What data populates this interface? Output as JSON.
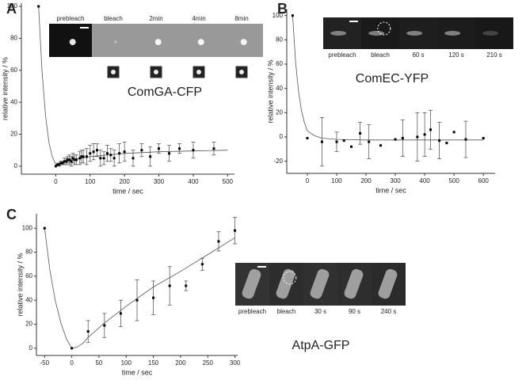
{
  "chart_data": [
    {
      "type": "scatter",
      "panel": "A",
      "annotation": "ComGA-CFP",
      "xlabel": "time / sec",
      "ylabel": "relative intensity / %",
      "insets": [
        "prebleach",
        "bleach",
        "2min",
        "4min",
        "8min"
      ],
      "xlim": [
        -100,
        520
      ],
      "ylim": [
        -5,
        102
      ],
      "xticks": [
        0,
        100,
        200,
        300,
        400,
        500
      ],
      "yticks": [
        0,
        20,
        40,
        60,
        80,
        100
      ],
      "x": [
        -50,
        0,
        5,
        10,
        15,
        20,
        25,
        30,
        35,
        40,
        45,
        50,
        55,
        60,
        70,
        75,
        80,
        90,
        100,
        110,
        120,
        130,
        140,
        150,
        160,
        170,
        185,
        200,
        225,
        250,
        275,
        300,
        330,
        360,
        400,
        460
      ],
      "values": [
        100,
        0,
        1,
        1,
        2,
        2,
        3,
        3,
        4,
        4,
        3,
        5,
        4,
        4,
        5,
        6,
        6,
        6,
        8,
        9,
        10,
        5,
        5,
        8,
        7,
        5,
        8,
        9,
        5,
        10,
        6,
        11,
        8,
        11,
        10,
        11
      ],
      "errors": [
        null,
        null,
        null,
        1,
        1,
        1,
        2,
        2,
        2,
        3,
        3,
        3,
        3,
        3,
        4,
        4,
        4,
        5,
        5,
        5,
        4,
        5,
        4,
        5,
        4,
        5,
        6,
        6,
        5,
        4,
        6,
        3,
        5,
        3,
        5,
        4
      ],
      "fit_x": [
        -50,
        -40,
        -30,
        -20,
        -10,
        0,
        20,
        50,
        100,
        200,
        300,
        400,
        500
      ],
      "fit_values": [
        100,
        60,
        32,
        15,
        6,
        1,
        2,
        4,
        6,
        8,
        9,
        9.5,
        10
      ]
    },
    {
      "type": "scatter",
      "panel": "B",
      "annotation": "ComEC-YFP",
      "xlabel": "time / sec",
      "ylabel": "relative intensity / %",
      "insets": [
        "prebleach",
        "bleach",
        "60 s",
        "120 s",
        "210 s"
      ],
      "xlim": [
        -70,
        640
      ],
      "ylim": [
        -30,
        105
      ],
      "xticks": [
        0,
        100,
        200,
        300,
        400,
        500,
        600
      ],
      "yticks": [
        -20,
        0,
        20,
        40,
        60,
        80,
        100
      ],
      "x": [
        -50,
        0,
        50,
        100,
        125,
        150,
        180,
        210,
        250,
        300,
        325,
        375,
        400,
        420,
        450,
        475,
        500,
        540,
        600
      ],
      "values": [
        100,
        -1,
        -4,
        -4,
        -3,
        -8,
        3,
        -4,
        -7,
        -2,
        -1,
        0,
        2,
        6,
        -3,
        -5,
        4,
        -2,
        -1
      ],
      "errors": [
        null,
        null,
        20,
        8,
        null,
        null,
        9,
        14,
        null,
        null,
        15,
        20,
        18,
        16,
        15,
        null,
        null,
        15,
        null
      ],
      "fit_x": [
        -50,
        -40,
        -30,
        -20,
        -10,
        0,
        25,
        50,
        100,
        200,
        300,
        400,
        500,
        600
      ],
      "fit_values": [
        100,
        62,
        38,
        22,
        12,
        5,
        1,
        -1,
        -2,
        -2.5,
        -2.5,
        -2.5,
        -2.5,
        -2.5
      ]
    },
    {
      "type": "scatter",
      "panel": "C",
      "annotation": "AtpA-GFP",
      "xlabel": "time / sec",
      "ylabel": "relative intensity / %",
      "insets": [
        "prebleach",
        "bleach",
        "30 s",
        "90 s",
        "240 s"
      ],
      "xlim": [
        -65,
        305
      ],
      "ylim": [
        -6,
        112
      ],
      "xticks": [
        -50,
        0,
        50,
        100,
        150,
        200,
        250,
        300
      ],
      "yticks": [
        0,
        20,
        40,
        60,
        80,
        100
      ],
      "x": [
        -50,
        0,
        30,
        60,
        90,
        120,
        150,
        180,
        210,
        240,
        270,
        300
      ],
      "values": [
        100,
        0,
        14,
        19,
        29,
        40,
        42,
        52,
        52,
        70,
        89,
        98
      ],
      "errors": [
        null,
        null,
        9,
        10,
        11,
        17,
        14,
        16,
        4,
        5,
        8,
        11
      ],
      "fit_x": [
        -50,
        -40,
        -30,
        -20,
        -10,
        0,
        10,
        20,
        30,
        60,
        100,
        150,
        200,
        250,
        300
      ],
      "fit_values": [
        100,
        64,
        39,
        21,
        8,
        0,
        1,
        4,
        9,
        21,
        35,
        51,
        64,
        78,
        92
      ]
    }
  ]
}
